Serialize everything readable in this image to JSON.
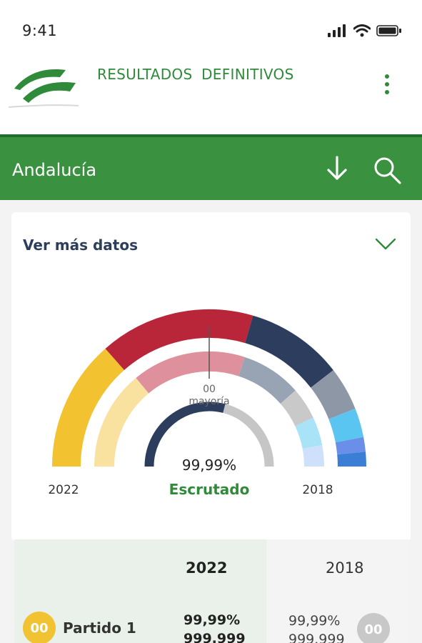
{
  "status_bar": {
    "time": "9:41",
    "icons": [
      "signal-icon",
      "wifi-icon",
      "battery-icon"
    ]
  },
  "header": {
    "title": "RESULTADOS  DEFINITIVOS",
    "logo": "andalucia-logo",
    "menu_icon": "more-vertical-icon"
  },
  "toolbar": {
    "region": "Andalucía",
    "download_icon": "download-icon",
    "search_icon": "search-icon"
  },
  "card": {
    "title": "Ver más datos",
    "chevron_icon": "chevron-down-icon"
  },
  "chart_data": {
    "type": "parliament-semicircle",
    "majority_value": "00",
    "majority_label": "mayoría",
    "scrutinized_percent": "99,99%",
    "scrutinized_label": "Escrutado",
    "scrutinized_fraction": 0.58,
    "left_label": "2022",
    "right_label": "2018",
    "rings": [
      {
        "name": "2022",
        "segments": [
          {
            "share": 0.27,
            "color": "#f2c230"
          },
          {
            "share": 0.32,
            "color": "#b9263a"
          },
          {
            "share": 0.2,
            "color": "#2c3d5e"
          },
          {
            "share": 0.09,
            "color": "#8e97a6"
          },
          {
            "share": 0.06,
            "color": "#5bc5f2"
          },
          {
            "share": 0.03,
            "color": "#6a8fe8"
          },
          {
            "share": 0.03,
            "color": "#3a7fd5"
          }
        ]
      },
      {
        "name": "2018",
        "segments": [
          {
            "share": 0.28,
            "color": "#f9e1a0"
          },
          {
            "share": 0.32,
            "color": "#de919c"
          },
          {
            "share": 0.17,
            "color": "#98a3b3"
          },
          {
            "share": 0.09,
            "color": "#c9c9c9"
          },
          {
            "share": 0.08,
            "color": "#a8e3f7"
          },
          {
            "share": 0.06,
            "color": "#cfe0fb"
          }
        ]
      }
    ]
  },
  "table": {
    "headers": {
      "y2022": "2022",
      "y2018": "2018"
    },
    "rows": [
      {
        "badge_2022": "00",
        "party": "Partido 1",
        "pct_2022": "99,99%",
        "votes_2022": "999.999",
        "pct_2018": "99,99%",
        "votes_2018": "999.999",
        "badge_2018": "00"
      }
    ]
  },
  "colors": {
    "brand_green": "#3a9240",
    "dark_green": "#2f8a3a",
    "navy": "#2c3e5a"
  }
}
